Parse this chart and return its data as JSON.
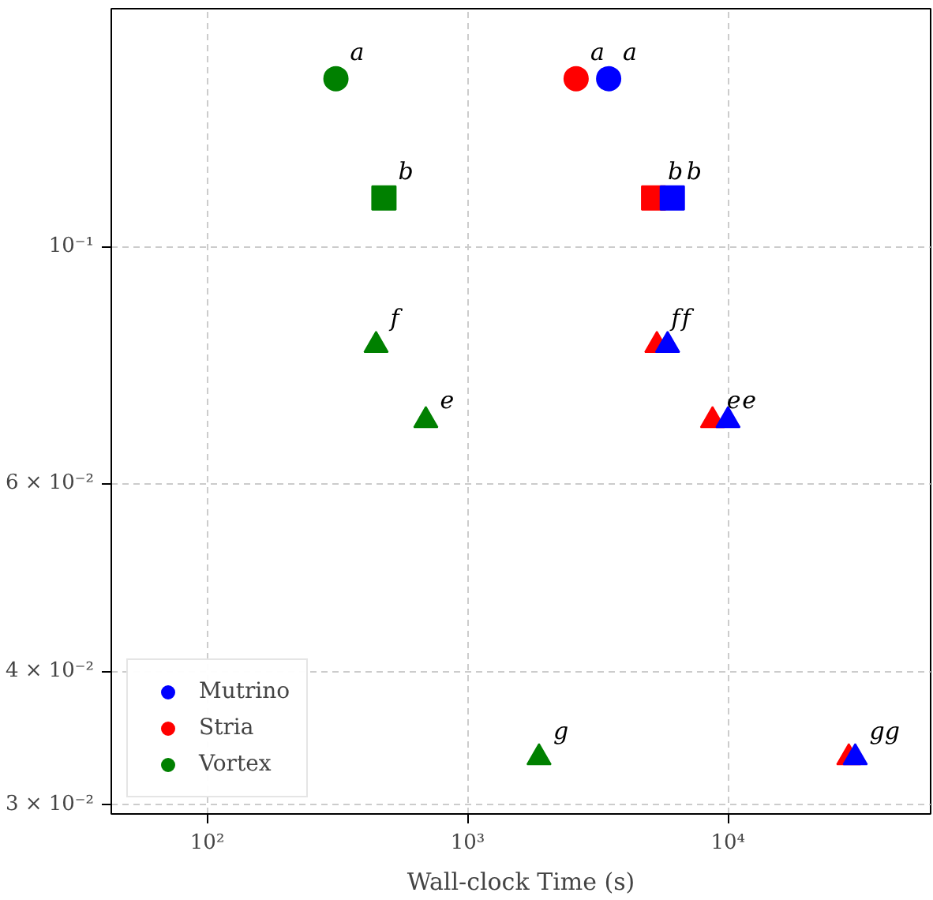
{
  "chart_data": {
    "type": "scatter",
    "xlabel": "Wall-clock Time (s)",
    "log": "xy",
    "grid": true,
    "legend": "bottom left",
    "xlim": [
      42.8,
      60000
    ],
    "ylim": [
      0.0294,
      0.167
    ],
    "xticks": [
      {
        "value": 100,
        "label": "10²"
      },
      {
        "value": 1000,
        "label": "10³"
      },
      {
        "value": 10000,
        "label": "10⁴"
      }
    ],
    "yticks": [
      {
        "value": 0.03,
        "label": "3 × 10⁻²"
      },
      {
        "value": 0.04,
        "label": "4 × 10⁻²"
      },
      {
        "value": 0.06,
        "label": "6 × 10⁻²"
      },
      {
        "value": 0.1,
        "label": "10⁻¹"
      }
    ],
    "series": [
      {
        "name": "Mutrino",
        "color": "#0000ff",
        "marker": "circle",
        "x": [
          3480
        ],
        "values": [
          0.1436
        ]
      },
      {
        "color": "#0000ff",
        "marker": "square",
        "x": [
          6110
        ],
        "values": [
          0.111
        ]
      },
      {
        "color": "#0000ff",
        "marker": "triangle",
        "x": [
          5860
        ],
        "values": [
          0.0808
        ]
      },
      {
        "color": "#0000ff",
        "marker": "triangle",
        "x": [
          10000
        ],
        "values": [
          0.0687
        ]
      },
      {
        "color": "#0000ff",
        "marker": "triangle",
        "x": [
          30800
        ],
        "values": [
          0.0332
        ]
      },
      {
        "name": "Stria",
        "color": "#ff0000",
        "marker": "circle",
        "x": [
          2610
        ],
        "values": [
          0.1436
        ]
      },
      {
        "color": "#ff0000",
        "marker": "square",
        "x": [
          5180
        ],
        "values": [
          0.111
        ]
      },
      {
        "color": "#ff0000",
        "marker": "triangle",
        "x": [
          5330
        ],
        "values": [
          0.0808
        ]
      },
      {
        "color": "#ff0000",
        "marker": "triangle",
        "x": [
          8720
        ],
        "values": [
          0.0687
        ]
      },
      {
        "color": "#ff0000",
        "marker": "triangle",
        "x": [
          29100
        ],
        "values": [
          0.0332
        ]
      },
      {
        "name": "Vortex",
        "color": "#008000",
        "marker": "circle",
        "x": [
          312
        ],
        "values": [
          0.1436
        ]
      },
      {
        "color": "#008000",
        "marker": "square",
        "x": [
          477
        ],
        "values": [
          0.111
        ]
      },
      {
        "color": "#008000",
        "marker": "triangle",
        "x": [
          445
        ],
        "values": [
          0.0808
        ]
      },
      {
        "color": "#008000",
        "marker": "triangle",
        "x": [
          691
        ],
        "values": [
          0.0687
        ]
      },
      {
        "color": "#008000",
        "marker": "triangle",
        "x": [
          1880
        ],
        "values": [
          0.0332
        ]
      }
    ],
    "annotations": [
      {
        "text": "a",
        "x": 312,
        "y": 0.1436
      },
      {
        "text": "a",
        "x": 2610,
        "y": 0.1436
      },
      {
        "text": "a",
        "x": 3480,
        "y": 0.1436
      },
      {
        "text": "b",
        "x": 477,
        "y": 0.111
      },
      {
        "text": "b",
        "x": 5180,
        "y": 0.111
      },
      {
        "text": "b",
        "x": 6110,
        "y": 0.111
      },
      {
        "text": "f",
        "x": 445,
        "y": 0.0808
      },
      {
        "text": "f",
        "x": 5330,
        "y": 0.0808
      },
      {
        "text": "f",
        "x": 5860,
        "y": 0.0808
      },
      {
        "text": "e",
        "x": 691,
        "y": 0.0687
      },
      {
        "text": "e",
        "x": 8720,
        "y": 0.0687
      },
      {
        "text": "e",
        "x": 10000,
        "y": 0.0687
      },
      {
        "text": "g",
        "x": 1880,
        "y": 0.0332
      },
      {
        "text": "gg",
        "x": 30800,
        "y": 0.0332
      }
    ]
  }
}
